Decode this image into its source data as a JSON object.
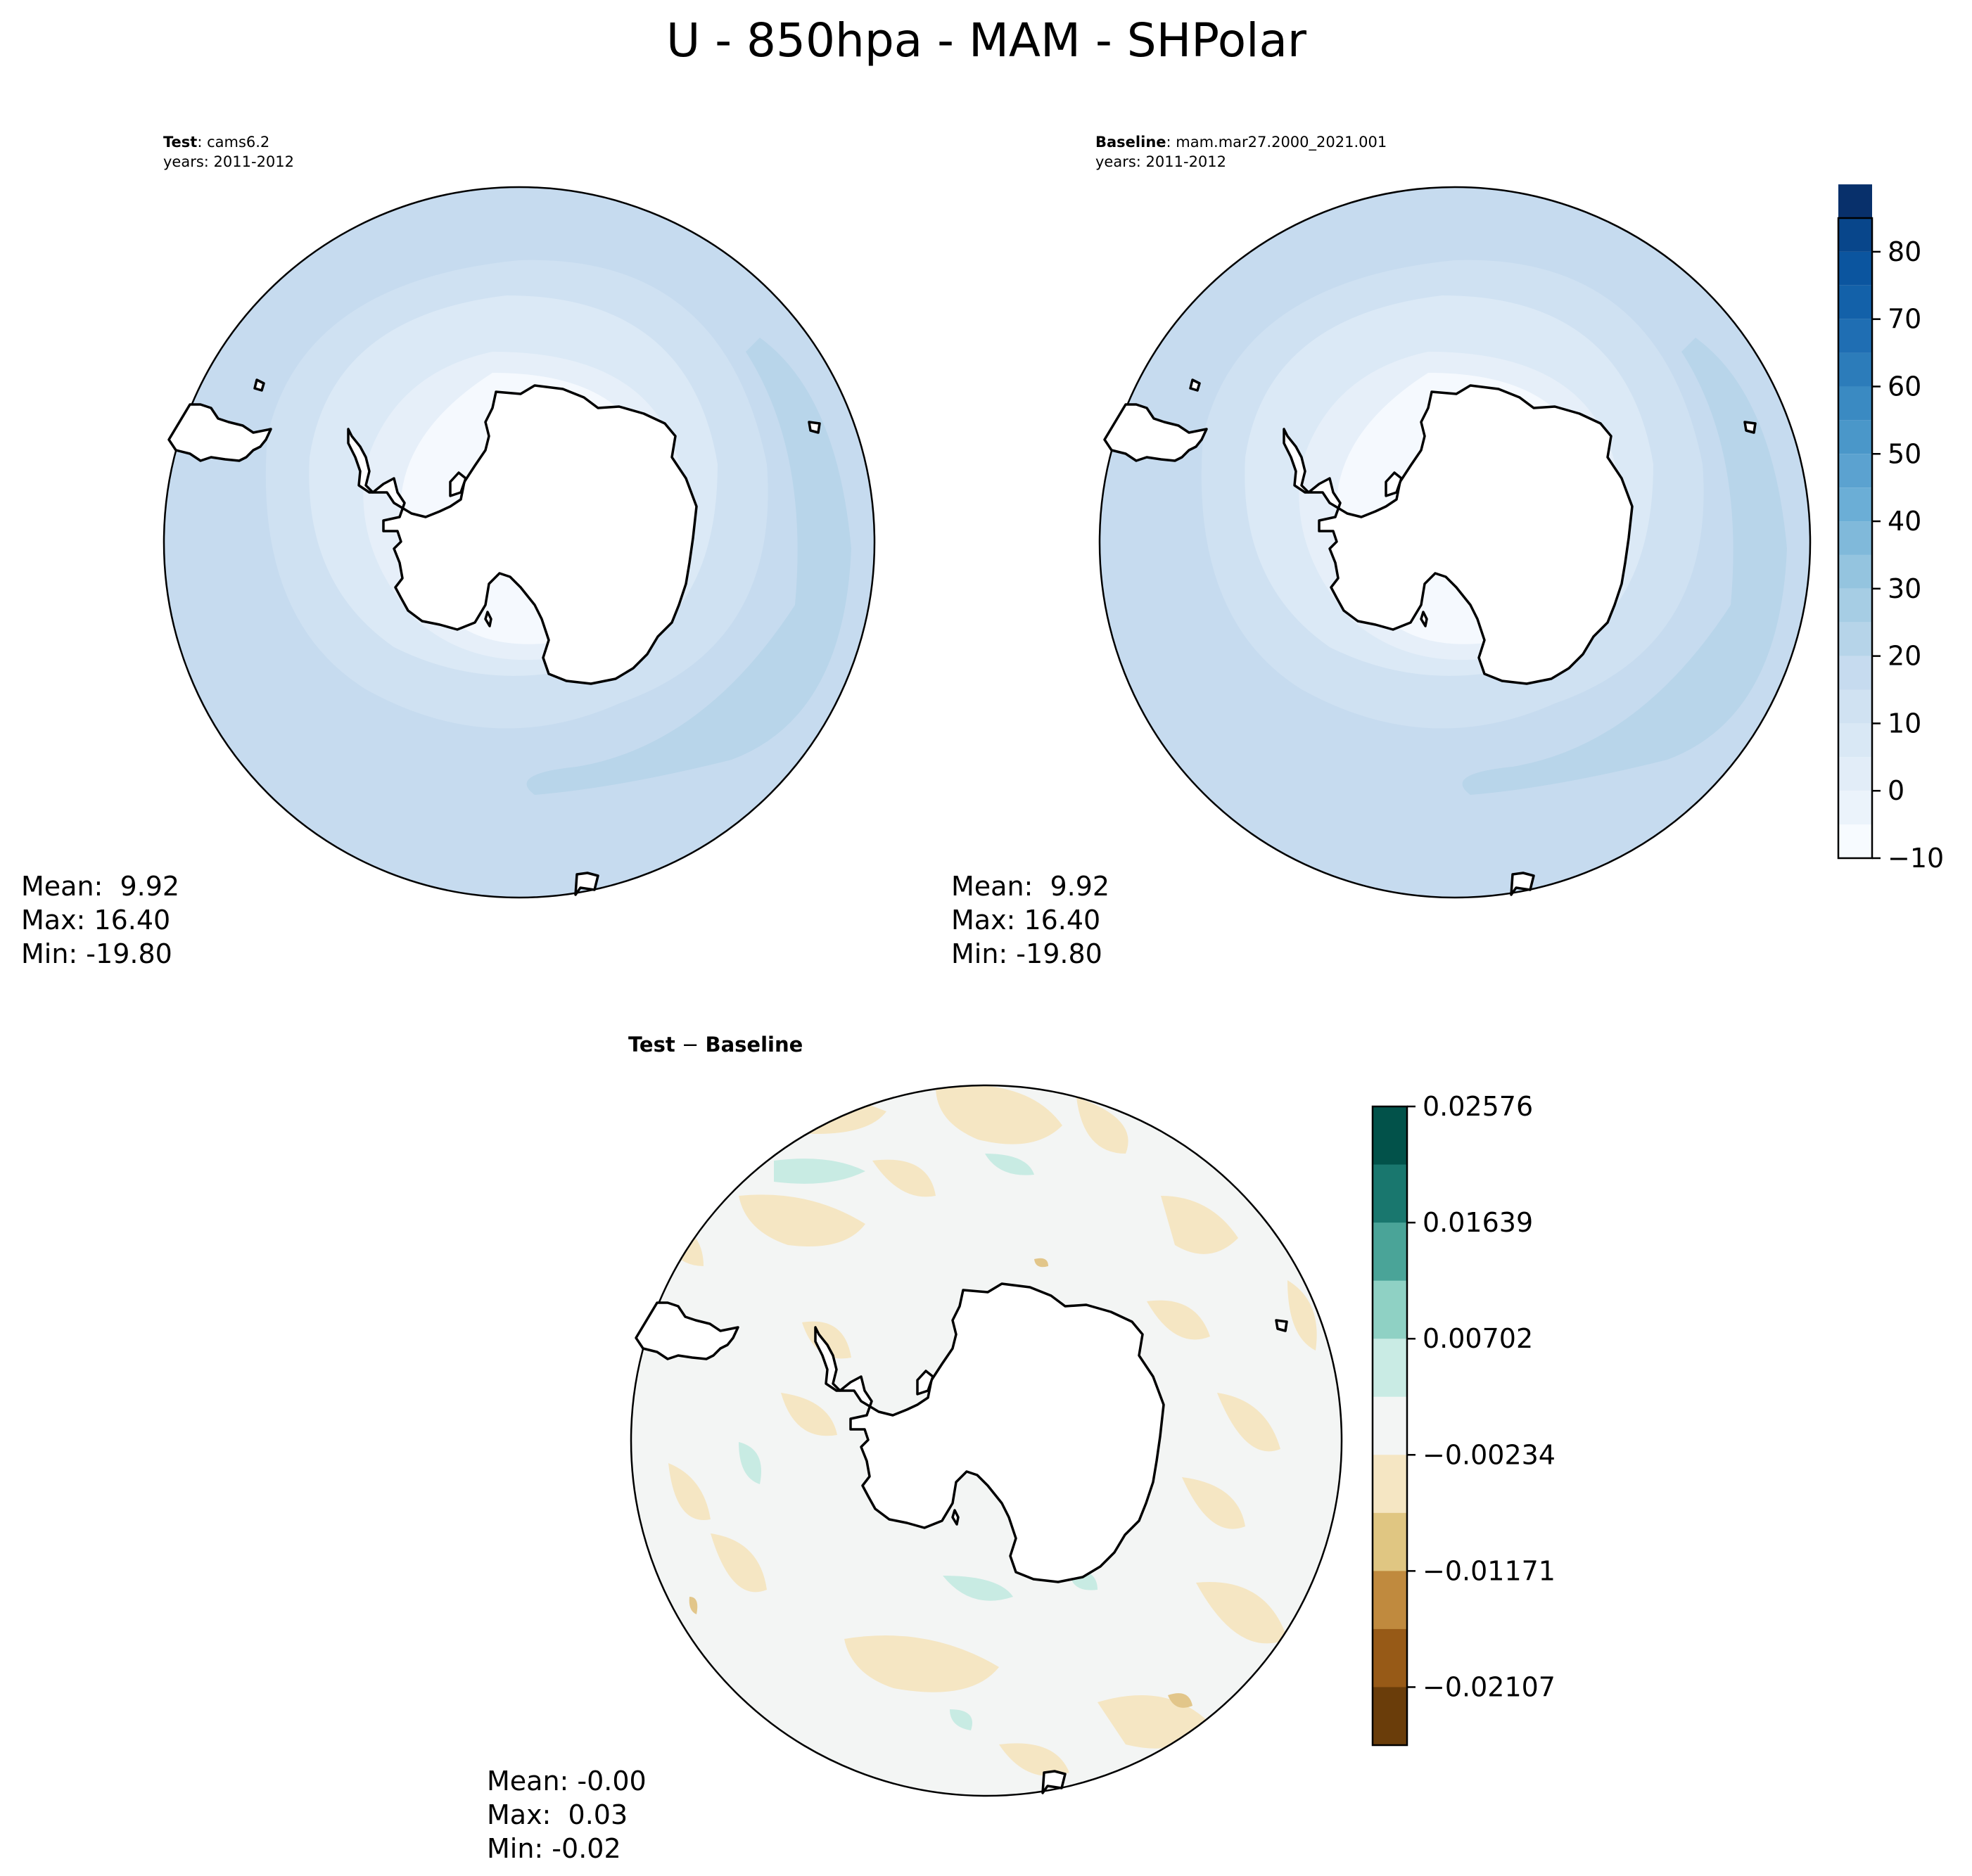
{
  "figure": {
    "title": "U - 850hpa - MAM - SHPolar"
  },
  "chart_data": [
    {
      "type": "heatmap",
      "projection": "south-polar-stereographic",
      "panel_label_bold": "Test",
      "panel_label_rest": ": cams6.2",
      "years": "years: 2011-2012",
      "stats": {
        "mean": "Mean:  9.92",
        "max": "Max: 16.40",
        "min": "Min: -19.80"
      },
      "fill_colors": [
        "#f5f9fe",
        "#e6eff9",
        "#dbe9f6",
        "#cfe1f2",
        "#c6dbef",
        "#b8d5ea"
      ],
      "colorbar_ref": "shared-blues"
    },
    {
      "type": "heatmap",
      "projection": "south-polar-stereographic",
      "panel_label_bold": "Baseline",
      "panel_label_rest": ": mam.mar27.2000_2021.001",
      "years": "years: 2011-2012",
      "stats": {
        "mean": "Mean:  9.92",
        "max": "Max: 16.40",
        "min": "Min: -19.80"
      },
      "fill_colors": [
        "#f5f9fe",
        "#e6eff9",
        "#dbe9f6",
        "#cfe1f2",
        "#c6dbef",
        "#b8d5ea"
      ],
      "colorbar_ref": "shared-blues"
    },
    {
      "type": "heatmap",
      "projection": "south-polar-stereographic",
      "panel_label_bold": "Test",
      "panel_label_dash": " − ",
      "panel_label_bold2": "Baseline",
      "stats": {
        "mean": "Mean: -0.00",
        "max": "Max:  0.03",
        "min": "Min: -0.02"
      },
      "fill_colors": [
        "#f3f5f4",
        "#f5e6c3",
        "#c8ebe3",
        "#e2c68a"
      ],
      "colorbar_ref": "diff-brbg"
    }
  ],
  "colorbars": {
    "shared": {
      "ticks": [
        "80",
        "70",
        "60",
        "50",
        "40",
        "30",
        "20",
        "10",
        "0",
        "−10"
      ],
      "range": [
        -10,
        85
      ],
      "step": 5,
      "colors": [
        "#f7fbff",
        "#ebf3fb",
        "#e2edf8",
        "#d9e8f5",
        "#d0e2f2",
        "#c6dbef",
        "#b6d4e9",
        "#a6cde4",
        "#94c4df",
        "#80b9da",
        "#6baed6",
        "#5ba2d0",
        "#4a97c9",
        "#3a8ac2",
        "#2c7cba",
        "#1f6eb3",
        "#1361a9",
        "#0b559f",
        "#08468b",
        "#08306b"
      ]
    },
    "diff": {
      "ticks": [
        "0.02576",
        "0.01639",
        "0.00702",
        "−0.00234",
        "−0.01171",
        "−0.02107"
      ],
      "colors_top_to_bottom": [
        "#02524a",
        "#19776e",
        "#4aa498",
        "#8fd1c4",
        "#c9ebe4",
        "#f3f5f4",
        "#f5e6c3",
        "#e0c682",
        "#c08a3e",
        "#975a17",
        "#6a3d0a"
      ]
    }
  }
}
